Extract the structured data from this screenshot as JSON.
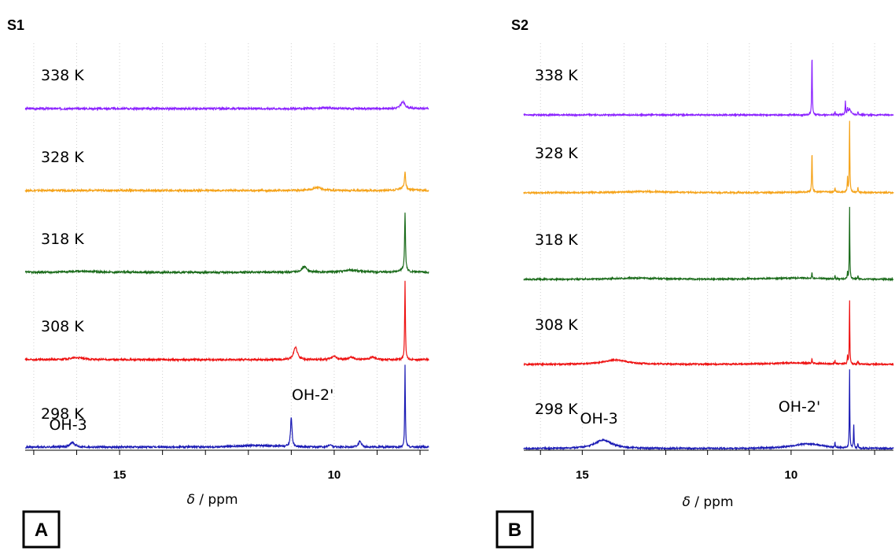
{
  "chart_data": [
    {
      "panel": "S1",
      "type": "line",
      "box_letter": "A",
      "xlabel_symbol": "δ",
      "xlabel_rest": " / ppm",
      "x_reversed": true,
      "xlim": [
        17.2,
        7.8
      ],
      "xticks": [
        15,
        10
      ],
      "minor_xticks": [
        17,
        16,
        14,
        13,
        12,
        11,
        9,
        8
      ],
      "grid": "vertical dotted",
      "labels": [
        {
          "text": "OH-3",
          "x": 16.2,
          "series": "298 K"
        },
        {
          "text": "OH-2'",
          "x": 10.5,
          "series": "298 K"
        }
      ],
      "series": [
        {
          "name": "338 K",
          "color": "#8b22ff",
          "peaks": [
            {
              "x": 8.4,
              "h": 0.32,
              "w": 0.06
            },
            {
              "x": 10.2,
              "h": 0.04,
              "w": 0.15
            }
          ]
        },
        {
          "name": "328 K",
          "color": "#f5a31a",
          "peaks": [
            {
              "x": 8.35,
              "h": 0.85,
              "w": 0.015
            },
            {
              "x": 8.4,
              "h": 0.12,
              "w": 0.12
            },
            {
              "x": 10.4,
              "h": 0.15,
              "w": 0.12
            }
          ]
        },
        {
          "name": "318 K",
          "color": "#1a6b1a",
          "peaks": [
            {
              "x": 8.35,
              "h": 2.85,
              "w": 0.012
            },
            {
              "x": 8.4,
              "h": 0.1,
              "w": 0.1
            },
            {
              "x": 10.7,
              "h": 0.28,
              "w": 0.07
            },
            {
              "x": 9.6,
              "h": 0.1,
              "w": 0.25
            },
            {
              "x": 15.9,
              "h": 0.06,
              "w": 0.35
            }
          ]
        },
        {
          "name": "308 K",
          "color": "#ee1111",
          "peaks": [
            {
              "x": 8.35,
              "h": 3.85,
              "w": 0.01
            },
            {
              "x": 10.9,
              "h": 0.62,
              "w": 0.05
            },
            {
              "x": 10.0,
              "h": 0.15,
              "w": 0.07
            },
            {
              "x": 9.6,
              "h": 0.12,
              "w": 0.07
            },
            {
              "x": 9.1,
              "h": 0.12,
              "w": 0.09
            },
            {
              "x": 16.0,
              "h": 0.1,
              "w": 0.2
            }
          ]
        },
        {
          "name": "298 K",
          "color": "#1a1ab4",
          "peaks": [
            {
              "x": 8.35,
              "h": 4.0,
              "w": 0.009
            },
            {
              "x": 11.0,
              "h": 1.45,
              "w": 0.02
            },
            {
              "x": 9.4,
              "h": 0.28,
              "w": 0.04
            },
            {
              "x": 10.1,
              "h": 0.11,
              "w": 0.04
            },
            {
              "x": 16.1,
              "h": 0.22,
              "w": 0.07
            },
            {
              "x": 11.8,
              "h": 0.08,
              "w": 0.5
            }
          ]
        }
      ]
    },
    {
      "panel": "S2",
      "type": "line",
      "box_letter": "B",
      "xlabel_symbol": "δ",
      "xlabel_rest": " / ppm",
      "x_reversed": true,
      "xlim": [
        16.4,
        7.55
      ],
      "xticks": [
        15,
        10
      ],
      "minor_xticks": [
        16,
        14,
        13,
        12,
        11,
        9,
        8
      ],
      "grid": "vertical dotted",
      "labels": [
        {
          "text": "OH-3",
          "x": 14.6,
          "series": "298 K"
        },
        {
          "text": "OH-2'",
          "x": 9.8,
          "series": "298 K"
        }
      ],
      "series": [
        {
          "name": "338 K",
          "color": "#8b22ff",
          "peaks": [
            {
              "x": 9.5,
              "h": 4.0,
              "w": 0.008
            },
            {
              "x": 8.7,
              "h": 0.9,
              "w": 0.008
            },
            {
              "x": 8.65,
              "h": 0.3,
              "w": 0.008
            },
            {
              "x": 8.6,
              "h": 0.35,
              "w": 0.04
            },
            {
              "x": 8.4,
              "h": 0.2,
              "w": 0.008
            },
            {
              "x": 8.95,
              "h": 0.2,
              "w": 0.008
            }
          ]
        },
        {
          "name": "328 K",
          "color": "#f5a31a",
          "peaks": [
            {
              "x": 9.5,
              "h": 2.7,
              "w": 0.008
            },
            {
              "x": 8.6,
              "h": 4.5,
              "w": 0.008
            },
            {
              "x": 8.65,
              "h": 0.9,
              "w": 0.008
            },
            {
              "x": 8.4,
              "h": 0.3,
              "w": 0.008
            },
            {
              "x": 8.95,
              "h": 0.3,
              "w": 0.008
            },
            {
              "x": 13.5,
              "h": 0.08,
              "w": 0.8
            },
            {
              "x": 9.3,
              "h": 0.06,
              "w": 0.8
            }
          ]
        },
        {
          "name": "318 K",
          "color": "#1a6b1a",
          "peaks": [
            {
              "x": 8.6,
              "h": 4.6,
              "w": 0.007
            },
            {
              "x": 9.5,
              "h": 0.35,
              "w": 0.008
            },
            {
              "x": 8.65,
              "h": 0.4,
              "w": 0.008
            },
            {
              "x": 8.95,
              "h": 0.2,
              "w": 0.008
            },
            {
              "x": 8.4,
              "h": 0.2,
              "w": 0.008
            },
            {
              "x": 13.7,
              "h": 0.08,
              "w": 0.7
            },
            {
              "x": 9.9,
              "h": 0.09,
              "w": 0.8
            }
          ]
        },
        {
          "name": "308 K",
          "color": "#ee1111",
          "peaks": [
            {
              "x": 8.6,
              "h": 4.1,
              "w": 0.007
            },
            {
              "x": 8.65,
              "h": 0.5,
              "w": 0.008
            },
            {
              "x": 9.5,
              "h": 0.3,
              "w": 0.008
            },
            {
              "x": 8.95,
              "h": 0.25,
              "w": 0.008
            },
            {
              "x": 8.4,
              "h": 0.25,
              "w": 0.008
            },
            {
              "x": 14.2,
              "h": 0.28,
              "w": 0.35
            },
            {
              "x": 9.9,
              "h": 0.09,
              "w": 0.8
            }
          ]
        },
        {
          "name": "298 K",
          "color": "#1a1ab4",
          "peaks": [
            {
              "x": 8.6,
              "h": 5.0,
              "w": 0.007
            },
            {
              "x": 8.5,
              "h": 1.6,
              "w": 0.007
            },
            {
              "x": 14.5,
              "h": 0.55,
              "w": 0.25
            },
            {
              "x": 9.6,
              "h": 0.3,
              "w": 0.45
            },
            {
              "x": 8.95,
              "h": 0.3,
              "w": 0.008
            },
            {
              "x": 8.4,
              "h": 0.3,
              "w": 0.008
            }
          ]
        }
      ]
    }
  ]
}
